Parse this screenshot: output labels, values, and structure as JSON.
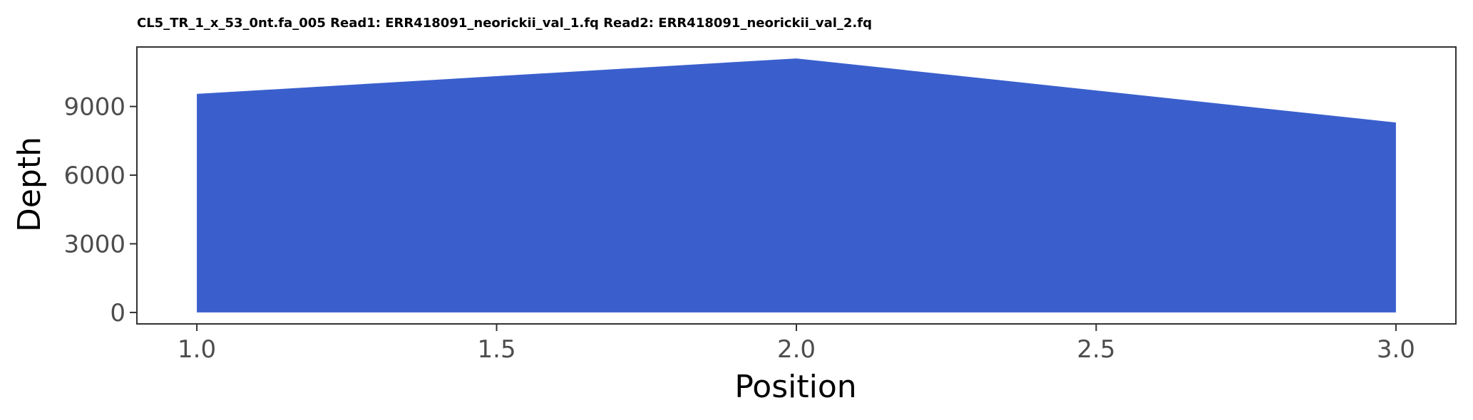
{
  "chart_data": {
    "type": "area",
    "title": "CL5_TR_1_x_53_0nt.fa_005 Read1: ERR418091_neorickii_val_1.fq Read2: ERR418091_neorickii_val_2.fq",
    "xlabel": "Position",
    "ylabel": "Depth",
    "x": [
      1.0,
      2.0,
      3.0
    ],
    "series": [
      {
        "values": [
          9550,
          11100,
          8300
        ]
      }
    ],
    "xlim": [
      0.9,
      3.1
    ],
    "ylim": [
      -500,
      11600
    ],
    "xticks": [
      1.0,
      1.5,
      2.0,
      2.5,
      3.0
    ],
    "xtick_labels": [
      "1.0",
      "1.5",
      "2.0",
      "2.5",
      "3.0"
    ],
    "yticks": [
      0,
      3000,
      6000,
      9000
    ],
    "ytick_labels": [
      "0",
      "3000",
      "6000",
      "9000"
    ],
    "grid": false,
    "legend": "none",
    "colors": {
      "fill": "#3a5fcd",
      "panel_border": "#333333",
      "tick_text": "#4d4d4d"
    }
  }
}
